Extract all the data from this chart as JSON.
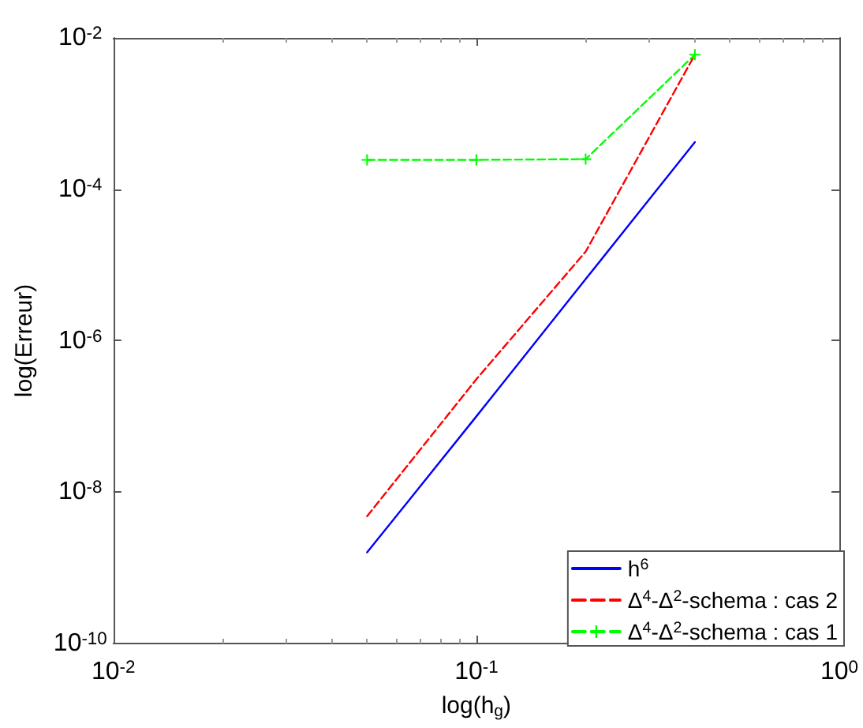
{
  "chart_data": {
    "type": "line",
    "xlabel": "log(h$_{g}$)",
    "ylabel": "log(Erreur)",
    "x": [
      0.05,
      0.1,
      0.2,
      0.4
    ],
    "series": [
      {
        "name": "h$^{6}$",
        "color": "#0000ff",
        "values": [
          1.6e-09,
          1e-07,
          6.5e-06,
          0.00042
        ],
        "line_style": "solid",
        "marker": "none"
      },
      {
        "name": "Δ$^{4}$-Δ$^{2}$-schema : cas 2",
        "color": "#ff0000",
        "values": [
          4.8e-09,
          3.1e-07,
          1.5e-05,
          0.006
        ],
        "line_style": "dashed",
        "marker": "none"
      },
      {
        "name": "Δ$^{4}$-Δ$^{2}$-schema : cas 1",
        "color": "#00ff00",
        "values": [
          0.000245,
          0.000245,
          0.00025,
          0.006
        ],
        "line_style": "dashed",
        "marker": "cross"
      }
    ],
    "log": "xy",
    "xlim": [
      0.01,
      1
    ],
    "ylim": [
      1e-10,
      0.01
    ],
    "xticks": [
      {
        "value": 0.01,
        "label": "10$^{-2}$"
      },
      {
        "value": 0.1,
        "label": "10$^{-1}$"
      },
      {
        "value": 1,
        "label": "10$^{0}$"
      }
    ],
    "yticks": [
      {
        "value": 1e-10,
        "label": "10$^{-10}$"
      },
      {
        "value": 1e-08,
        "label": "10$^{-8}$"
      },
      {
        "value": 1e-06,
        "label": "10$^{-6}$"
      },
      {
        "value": 0.0001,
        "label": "10$^{-4}$"
      },
      {
        "value": 0.01,
        "label": "10$^{-2}$"
      }
    ],
    "grid": false,
    "legend": "bottom right"
  }
}
